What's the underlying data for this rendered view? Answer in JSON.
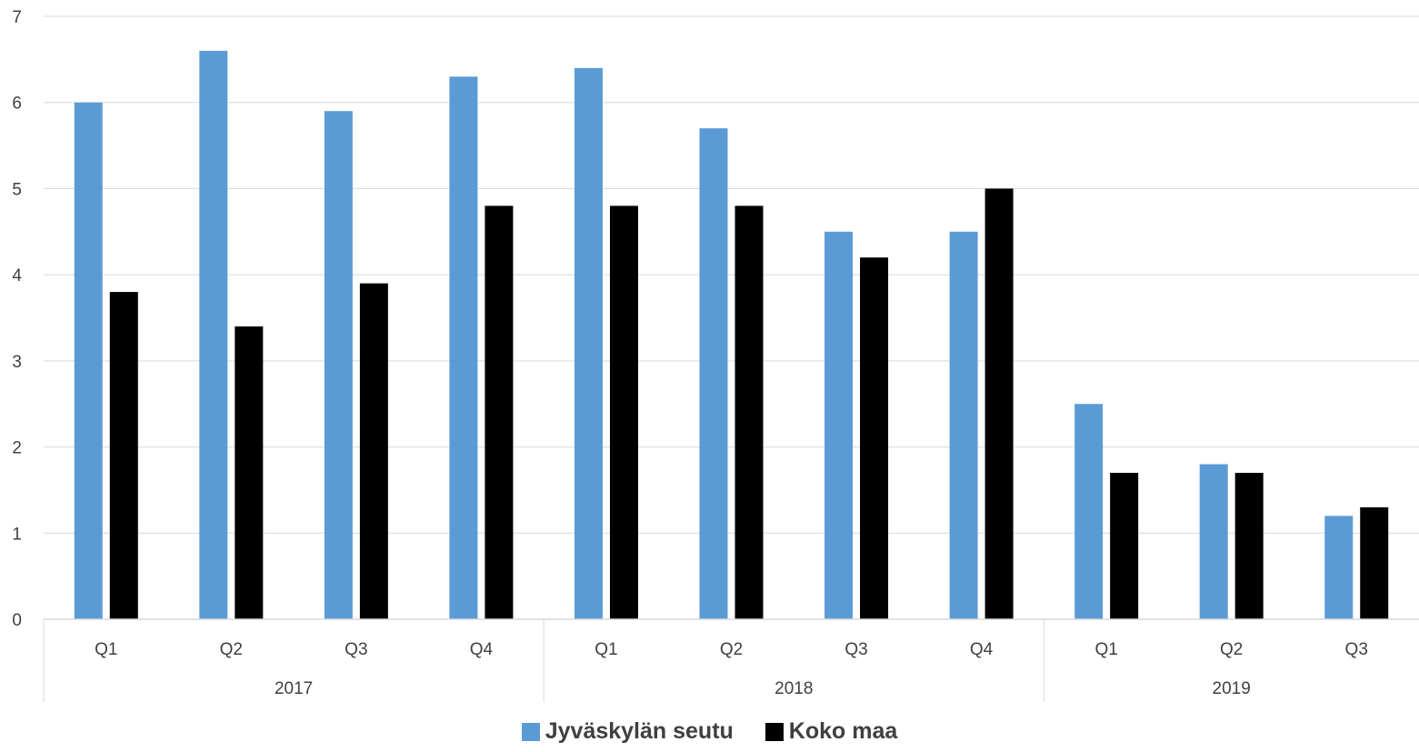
{
  "chart_data": {
    "type": "bar",
    "categories": [
      {
        "quarter": "Q1",
        "year": "2017"
      },
      {
        "quarter": "Q2",
        "year": "2017"
      },
      {
        "quarter": "Q3",
        "year": "2017"
      },
      {
        "quarter": "Q4",
        "year": "2017"
      },
      {
        "quarter": "Q1",
        "year": "2018"
      },
      {
        "quarter": "Q2",
        "year": "2018"
      },
      {
        "quarter": "Q3",
        "year": "2018"
      },
      {
        "quarter": "Q4",
        "year": "2018"
      },
      {
        "quarter": "Q1",
        "year": "2019"
      },
      {
        "quarter": "Q2",
        "year": "2019"
      },
      {
        "quarter": "Q3",
        "year": "2019"
      }
    ],
    "years": [
      "2017",
      "2018",
      "2019"
    ],
    "series": [
      {
        "name": "Jyväskylän seutu",
        "color": "#5b9bd5",
        "values": [
          6.0,
          6.6,
          5.9,
          6.3,
          6.4,
          5.7,
          4.5,
          4.5,
          2.5,
          1.8,
          1.2
        ]
      },
      {
        "name": "Koko maa",
        "color": "#000000",
        "values": [
          3.8,
          3.4,
          3.9,
          4.8,
          4.8,
          4.8,
          4.2,
          5.0,
          1.7,
          1.7,
          1.3
        ]
      }
    ],
    "ylim": [
      0,
      7
    ],
    "yticks": [
      0,
      1,
      2,
      3,
      4,
      5,
      6,
      7
    ],
    "grid": true,
    "legend": "bottom-center"
  }
}
